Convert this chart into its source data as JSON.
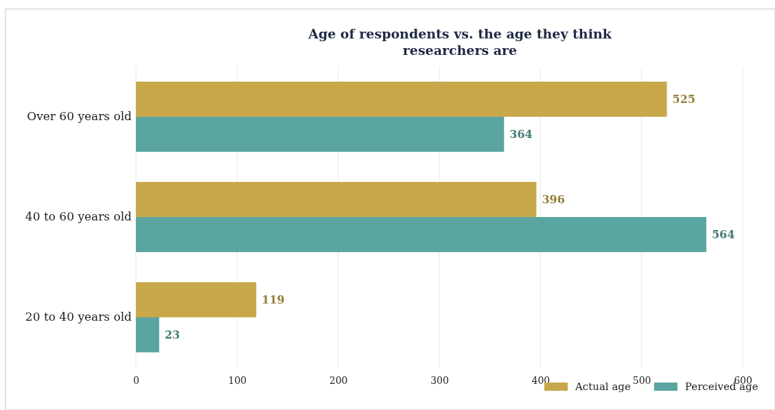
{
  "chart_data": {
    "type": "bar",
    "orientation": "horizontal",
    "title": "Age of respondents vs. the age they think researchers are",
    "categories": [
      "Over 60 years old",
      "40 to 60 years old",
      "20 to 40 years old"
    ],
    "series": [
      {
        "name": "Actual age",
        "color": "#c8a84b",
        "values": [
          525,
          396,
          119
        ]
      },
      {
        "name": "Perceived age",
        "color": "#5ba5a0",
        "values": [
          364,
          564,
          23
        ]
      }
    ],
    "xlim": [
      0,
      600
    ],
    "xticks": [
      0,
      100,
      200,
      300,
      400,
      500,
      600
    ],
    "grid": "x",
    "legend": "bottom right",
    "data_labels": true
  }
}
